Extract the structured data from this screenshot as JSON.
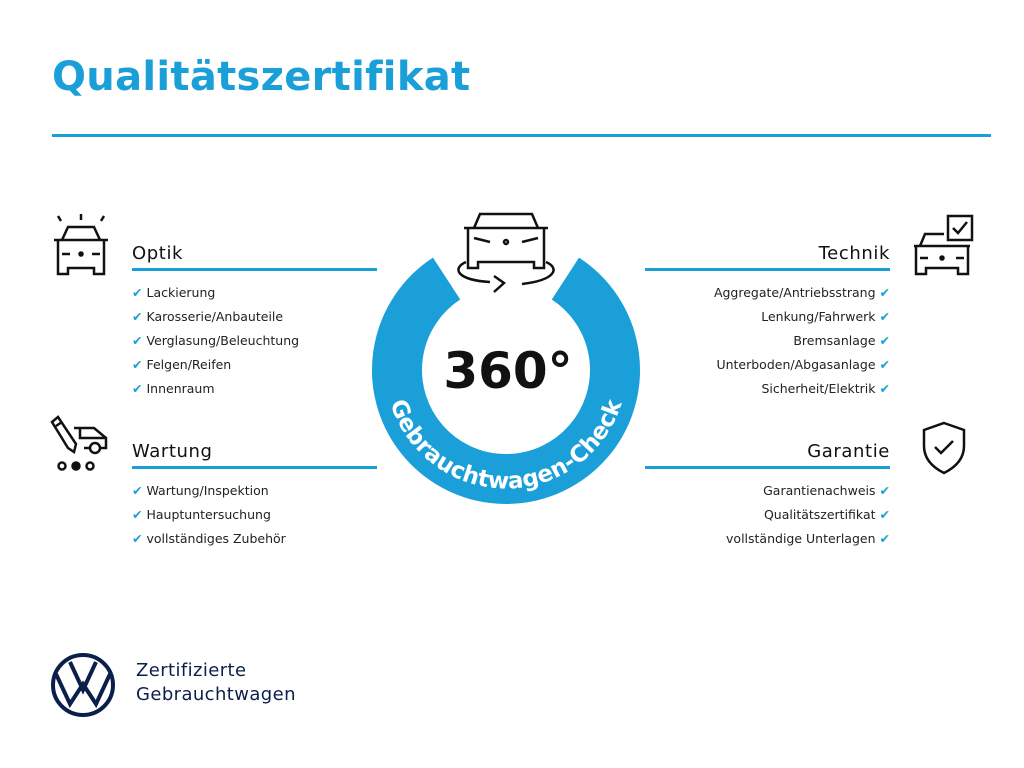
{
  "title": "Qualitätszertifikat",
  "accent": "#1a9fd9",
  "center": {
    "big": "360°",
    "ring_text": "Gebrauchtwagen-Check",
    "icon": "car-rotate-icon"
  },
  "sections": {
    "optik": {
      "title": "Optik",
      "icon": "car-lights-icon",
      "items": [
        "Lackierung",
        "Karosserie/Anbauteile",
        "Verglasung/Beleuchtung",
        "Felgen/Reifen",
        "Innenraum"
      ]
    },
    "wartung": {
      "title": "Wartung",
      "icon": "service-van-icon",
      "items": [
        "Wartung/Inspektion",
        "Hauptuntersuchung",
        "vollständiges Zubehör"
      ]
    },
    "technik": {
      "title": "Technik",
      "icon": "car-checkbox-icon",
      "items": [
        "Aggregate/Antriebsstrang",
        "Lenkung/Fahrwerk",
        "Bremsanlage",
        "Unterboden/Abgasanlage",
        "Sicherheit/Elektrik"
      ]
    },
    "garantie": {
      "title": "Garantie",
      "icon": "shield-check-icon",
      "items": [
        "Garantienachweis",
        "Qualitätszertifikat",
        "vollständige Unterlagen"
      ]
    }
  },
  "check_glyph": "✔",
  "brand": {
    "line1": "Zertifizierte",
    "line2": "Gebrauchtwagen",
    "logo": "VW"
  }
}
